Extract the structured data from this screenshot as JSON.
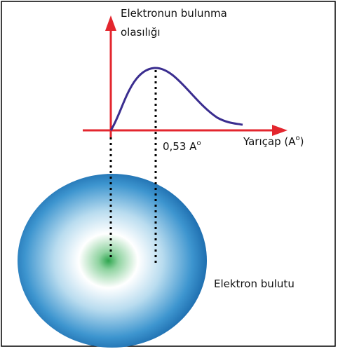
{
  "y_axis_label": {
    "line1": "Elektronun bulunma",
    "line2": "olasılığı"
  },
  "peak_label": {
    "text": "0,53 A",
    "sup": "o"
  },
  "x_axis_label": {
    "text": "Yarıçap (A",
    "sup": "o",
    "end": ")"
  },
  "cloud_label": "Elektron bulutu"
}
